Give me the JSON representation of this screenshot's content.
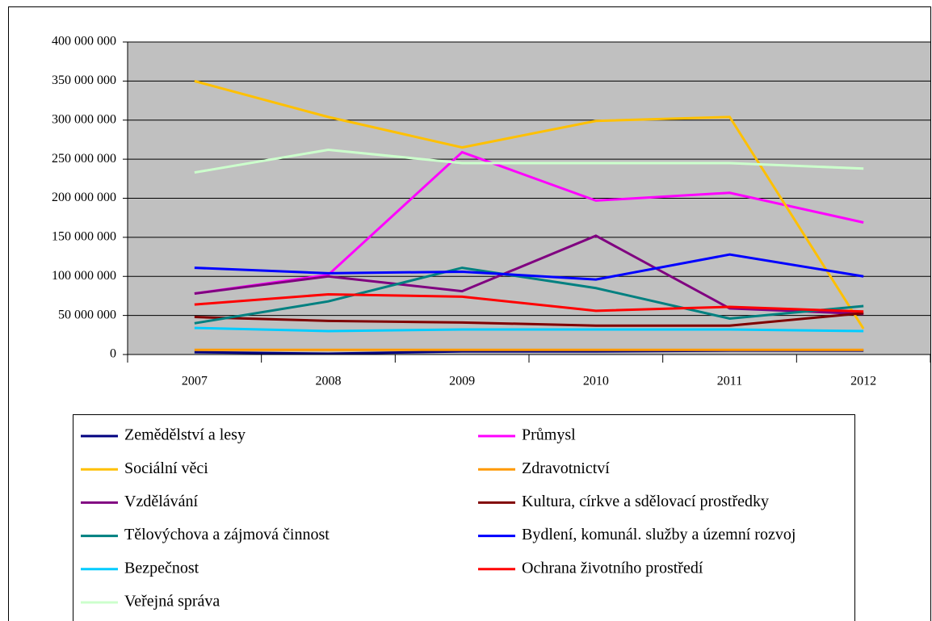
{
  "chart_data": {
    "type": "line",
    "categories": [
      "2007",
      "2008",
      "2009",
      "2010",
      "2011",
      "2012"
    ],
    "series": [
      {
        "name": "Zemědělství a lesy",
        "color": "#000080",
        "values": [
          3000000,
          1000000,
          4000000,
          4000000,
          5000000,
          5000000
        ]
      },
      {
        "name": "Průmysl",
        "color": "#ff00ff",
        "values": [
          78000000,
          102000000,
          259000000,
          197000000,
          207000000,
          169000000
        ]
      },
      {
        "name": "Sociální věci",
        "color": "#ffc000",
        "values": [
          350000000,
          304000000,
          265000000,
          299000000,
          304000000,
          33000000
        ]
      },
      {
        "name": "Zdravotnictví",
        "color": "#ff9900",
        "values": [
          6000000,
          6000000,
          6000000,
          6000000,
          6000000,
          6000000
        ]
      },
      {
        "name": "Vzdělávání",
        "color": "#800080",
        "values": [
          78000000,
          100000000,
          81000000,
          152000000,
          59000000,
          52000000
        ]
      },
      {
        "name": "Kultura, církve a sdělovací prostředky",
        "color": "#800000",
        "values": [
          48000000,
          43000000,
          41000000,
          37000000,
          37000000,
          53000000
        ]
      },
      {
        "name": "Tělovýchova a zájmová činnost",
        "color": "#008080",
        "values": [
          40000000,
          68000000,
          111000000,
          85000000,
          46000000,
          62000000
        ]
      },
      {
        "name": "Bydlení, komunál. služby a územní rozvoj",
        "color": "#0000ff",
        "values": [
          111000000,
          104000000,
          106000000,
          96000000,
          128000000,
          100000000
        ]
      },
      {
        "name": "Bezpečnost",
        "color": "#00ccff",
        "values": [
          34000000,
          30000000,
          32000000,
          32000000,
          32000000,
          30000000
        ]
      },
      {
        "name": "Ochrana životního prostředí",
        "color": "#ff0000",
        "values": [
          64000000,
          77000000,
          74000000,
          56000000,
          61000000,
          55000000
        ]
      },
      {
        "name": "Veřejná správa",
        "color": "#ccffcc",
        "values": [
          233000000,
          262000000,
          245000000,
          245000000,
          245000000,
          238000000
        ]
      }
    ],
    "ylim": [
      0,
      400000000
    ],
    "yticks": [
      0,
      {
        "value": 50000000,
        "label": "50 000 000"
      },
      {
        "value": 100000000,
        "label": "100 000 000"
      },
      {
        "value": 150000000,
        "label": "150 000 000"
      },
      {
        "value": 200000000,
        "label": "200 000 000"
      },
      {
        "value": 250000000,
        "label": "250 000 000"
      },
      {
        "value": 300000000,
        "label": "300 000 000"
      },
      {
        "value": 350000000,
        "label": "350 000 000"
      },
      {
        "value": 400000000,
        "label": "400 000 000"
      }
    ],
    "grid": true,
    "legend": "bottom"
  }
}
